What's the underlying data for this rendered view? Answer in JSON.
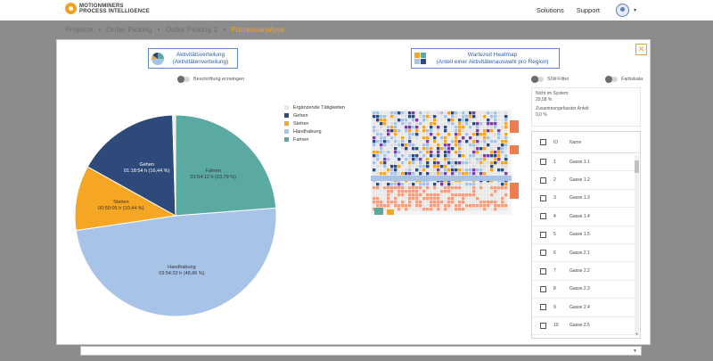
{
  "nav": {
    "logo_line1": "MOTIONMINERS",
    "logo_line2": "PROCESS INTELLIGENCE",
    "solutions": "Solutions",
    "support": "Support",
    "caret": "▾"
  },
  "breadcrumb": {
    "items": [
      "Projekte",
      "Order Picking",
      "Order Picking 1",
      "Prozessanalyse"
    ],
    "separator": "•"
  },
  "modal": {
    "close": "✕",
    "btn_activity_line1": "Aktivitätsverteilung",
    "btn_activity_line2": "(Aktivitätenverteilung)",
    "btn_heatmap_line1": "Wartezeit Heatmap",
    "btn_heatmap_line2": "(Anteil einer Aktivitätenauswahl pro Region)",
    "toggle_labels": "Beschriftung erzwingen",
    "toggle_sw": "S/W-Filter",
    "toggle_color": "Farbskala",
    "info_line1": "Nicht im System:",
    "info_line2": "29,58 %",
    "info_line3": "Zusammengefasster Anteil:",
    "info_line4": "0,0 %"
  },
  "legend": [
    {
      "label": "Ergänzende Tätigkeiten",
      "color": "#e8e8e8"
    },
    {
      "label": "Gehen",
      "color": "#2d4a7a"
    },
    {
      "label": "Stehen",
      "color": "#f5a623"
    },
    {
      "label": "Handhabung",
      "color": "#a8c3e8"
    },
    {
      "label": "Fahren",
      "color": "#5aaaa2"
    }
  ],
  "chart_data": {
    "type": "pie",
    "slices": [
      {
        "label": "Fahren",
        "time": "01:54:12 h",
        "percent": 23.79,
        "percent_text": "(23,79 %)",
        "color": "#5aaaa2"
      },
      {
        "label": "Handhabung",
        "time": "03:54:32 h",
        "percent": 48.86,
        "percent_text": "(48,86 %)",
        "color": "#a8c3e8"
      },
      {
        "label": "Stehen",
        "time": "00:50:05 h",
        "percent": 10.44,
        "percent_text": "(10,44 %)",
        "color": "#f5a623"
      },
      {
        "label": "Gehen",
        "time": "01:18:54 h",
        "percent": 16.44,
        "percent_text": "(16,44 %)",
        "color": "#2d4a7a"
      },
      {
        "label": "Ergänzende Tätigkeiten",
        "time": "",
        "percent": 0.47,
        "percent_text": "",
        "color": "#e8e8e8"
      }
    ]
  },
  "table": {
    "header_id": "ID",
    "header_name": "Name",
    "rows": [
      {
        "id": "1",
        "name": "Gasse 1.1"
      },
      {
        "id": "2",
        "name": "Gasse 1.2"
      },
      {
        "id": "3",
        "name": "Gasse 1.3"
      },
      {
        "id": "4",
        "name": "Gasse 1.4"
      },
      {
        "id": "5",
        "name": "Gasse 1.5"
      },
      {
        "id": "6",
        "name": "Gasse 2.1"
      },
      {
        "id": "7",
        "name": "Gasse 2.2"
      },
      {
        "id": "8",
        "name": "Gasse 2.3"
      },
      {
        "id": "9",
        "name": "Gasse 2.4"
      },
      {
        "id": "10",
        "name": "Gasse 2.5"
      }
    ]
  }
}
